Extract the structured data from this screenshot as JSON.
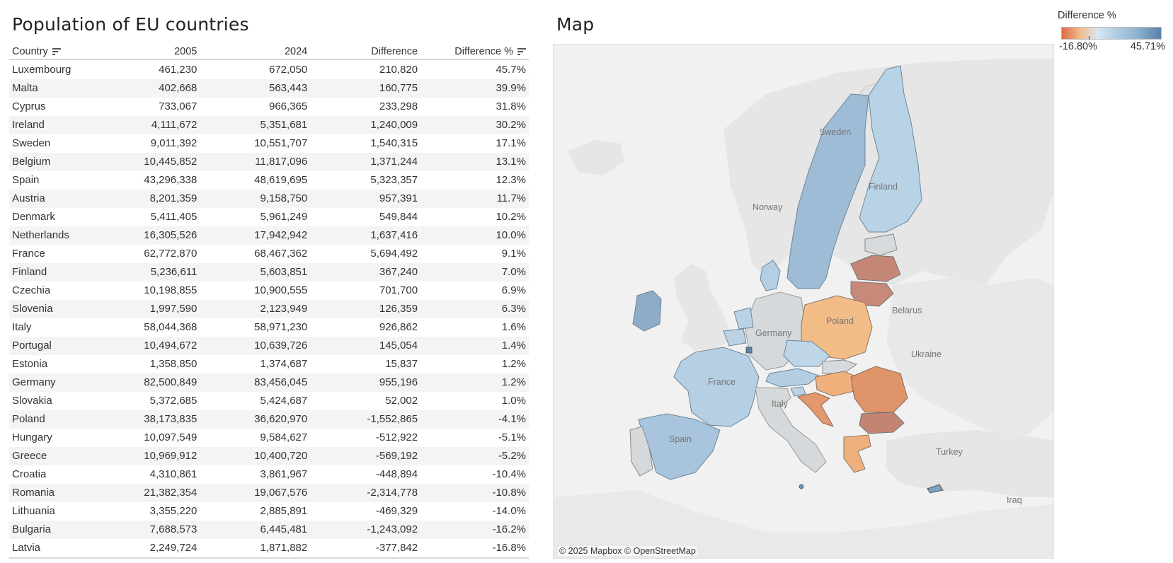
{
  "table": {
    "title": "Population of EU countries",
    "columns": [
      "Country",
      "2005",
      "2024",
      "Difference",
      "Difference %"
    ],
    "rows": [
      [
        "Luxembourg",
        "461,230",
        "672,050",
        "210,820",
        "45.7%"
      ],
      [
        "Malta",
        "402,668",
        "563,443",
        "160,775",
        "39.9%"
      ],
      [
        "Cyprus",
        "733,067",
        "966,365",
        "233,298",
        "31.8%"
      ],
      [
        "Ireland",
        "4,111,672",
        "5,351,681",
        "1,240,009",
        "30.2%"
      ],
      [
        "Sweden",
        "9,011,392",
        "10,551,707",
        "1,540,315",
        "17.1%"
      ],
      [
        "Belgium",
        "10,445,852",
        "11,817,096",
        "1,371,244",
        "13.1%"
      ],
      [
        "Spain",
        "43,296,338",
        "48,619,695",
        "5,323,357",
        "12.3%"
      ],
      [
        "Austria",
        "8,201,359",
        "9,158,750",
        "957,391",
        "11.7%"
      ],
      [
        "Denmark",
        "5,411,405",
        "5,961,249",
        "549,844",
        "10.2%"
      ],
      [
        "Netherlands",
        "16,305,526",
        "17,942,942",
        "1,637,416",
        "10.0%"
      ],
      [
        "France",
        "62,772,870",
        "68,467,362",
        "5,694,492",
        "9.1%"
      ],
      [
        "Finland",
        "5,236,611",
        "5,603,851",
        "367,240",
        "7.0%"
      ],
      [
        "Czechia",
        "10,198,855",
        "10,900,555",
        "701,700",
        "6.9%"
      ],
      [
        "Slovenia",
        "1,997,590",
        "2,123,949",
        "126,359",
        "6.3%"
      ],
      [
        "Italy",
        "58,044,368",
        "58,971,230",
        "926,862",
        "1.6%"
      ],
      [
        "Portugal",
        "10,494,672",
        "10,639,726",
        "145,054",
        "1.4%"
      ],
      [
        "Estonia",
        "1,358,850",
        "1,374,687",
        "15,837",
        "1.2%"
      ],
      [
        "Germany",
        "82,500,849",
        "83,456,045",
        "955,196",
        "1.2%"
      ],
      [
        "Slovakia",
        "5,372,685",
        "5,424,687",
        "52,002",
        "1.0%"
      ],
      [
        "Poland",
        "38,173,835",
        "36,620,970",
        "-1,552,865",
        "-4.1%"
      ],
      [
        "Hungary",
        "10,097,549",
        "9,584,627",
        "-512,922",
        "-5.1%"
      ],
      [
        "Greece",
        "10,969,912",
        "10,400,720",
        "-569,192",
        "-5.2%"
      ],
      [
        "Croatia",
        "4,310,861",
        "3,861,967",
        "-448,894",
        "-10.4%"
      ],
      [
        "Romania",
        "21,382,354",
        "19,067,576",
        "-2,314,778",
        "-10.8%"
      ],
      [
        "Lithuania",
        "3,355,220",
        "2,885,891",
        "-469,329",
        "-14.0%"
      ],
      [
        "Bulgaria",
        "7,688,573",
        "6,445,481",
        "-1,243,092",
        "-16.2%"
      ],
      [
        "Latvia",
        "2,249,724",
        "1,871,882",
        "-377,842",
        "-16.8%"
      ]
    ],
    "sort_icons": [
      "sort-icon",
      "sort-icon"
    ]
  },
  "map": {
    "title": "Map",
    "attribution": "© 2025 Mapbox © OpenStreetMap",
    "labels": [
      "Sweden",
      "Finland",
      "Norway",
      "Belarus",
      "Poland",
      "Germany",
      "Ukraine",
      "France",
      "Italy",
      "Spain",
      "Turkey",
      "Iraq"
    ],
    "colors": {
      "high": "#8fb0cc",
      "mid": "#b3cde2",
      "low_pos": "#cddde9",
      "neutral": "#d4d8da",
      "neg_light": "#f2bb86",
      "neg_mid": "#e0936a",
      "neg_dark": "#c28372",
      "sea": "#f1f1f1",
      "land": "#e4e4e4"
    }
  },
  "legend": {
    "title": "Difference %",
    "min": "-16.80%",
    "max": "45.71%",
    "colors": [
      "#de6a45",
      "#f2b98a",
      "#d7e7f2",
      "#5a82a8"
    ]
  }
}
